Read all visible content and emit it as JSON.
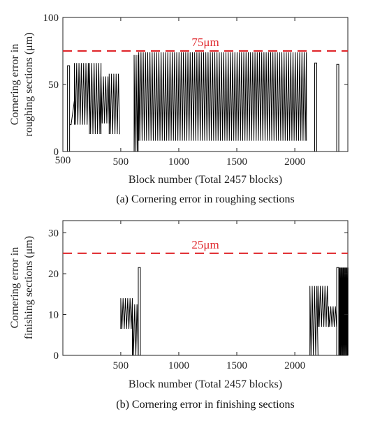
{
  "chart_data": [
    {
      "type": "line",
      "caption": "(a) Cornering error in roughing sections",
      "xlabel": "Block number (Total 2457 blocks)",
      "ylabel": [
        "Cornering error in",
        "roughing sections (μm)"
      ],
      "xlim": [
        1,
        2457
      ],
      "ylim": [
        0,
        100
      ],
      "xticks": [
        "500",
        "1000",
        "1500",
        "2000"
      ],
      "yticks": [
        "0",
        "50",
        "100"
      ],
      "threshold": {
        "value": 75,
        "label": "75μm",
        "color": "#e0292e",
        "style": "dashed"
      },
      "series_color": "#000000",
      "segments": [
        {
          "x": [
            30,
            70
          ],
          "low": 0,
          "high": 64,
          "kind": "spike"
        },
        {
          "x": [
            60,
            100
          ],
          "low": 20,
          "high": 38,
          "kind": "ramp"
        },
        {
          "x": [
            100,
            230
          ],
          "low": 20,
          "high": 66,
          "kind": "oscillation"
        },
        {
          "x": [
            230,
            330
          ],
          "low": 13,
          "high": 66,
          "kind": "oscillation"
        },
        {
          "x": [
            330,
            400
          ],
          "low": 21,
          "high": 56,
          "kind": "oscillation"
        },
        {
          "x": [
            400,
            490
          ],
          "low": 13,
          "high": 58,
          "kind": "oscillation"
        },
        {
          "x": [
            615,
            650
          ],
          "low": 0,
          "high": 72,
          "kind": "oscillation"
        },
        {
          "x": [
            655,
            2100
          ],
          "low": 8,
          "high": 74,
          "kind": "oscillation"
        },
        {
          "x": [
            2170,
            2190
          ],
          "low": 0,
          "high": 66,
          "kind": "spike"
        },
        {
          "x": [
            2365,
            2375
          ],
          "low": 0,
          "high": 65,
          "kind": "spike"
        }
      ]
    },
    {
      "type": "line",
      "caption": "(b) Cornering error in finishing sections",
      "xlabel": "Block number (Total 2457 blocks)",
      "ylabel": [
        "Cornering error in",
        "finishing sections (μm)"
      ],
      "xlim": [
        1,
        2457
      ],
      "ylim": [
        0,
        33
      ],
      "xticks": [
        "500",
        "1000",
        "1500",
        "2000"
      ],
      "yticks": [
        "0",
        "10",
        "20",
        "30"
      ],
      "threshold": {
        "value": 25,
        "label": "25μm",
        "color": "#e0292e",
        "style": "dashed"
      },
      "series_color": "#000000",
      "segments": [
        {
          "x": [
            500,
            600
          ],
          "low": 6.5,
          "high": 14,
          "kind": "oscillation"
        },
        {
          "x": [
            600,
            650
          ],
          "low": 0,
          "high": 12.5,
          "kind": "oscillation"
        },
        {
          "x": [
            655,
            665
          ],
          "low": 0,
          "high": 21.5,
          "kind": "spike"
        },
        {
          "x": [
            2130,
            2200
          ],
          "low": 0,
          "high": 17,
          "kind": "oscillation"
        },
        {
          "x": [
            2200,
            2290
          ],
          "low": 7,
          "high": 17,
          "kind": "oscillation"
        },
        {
          "x": [
            2290,
            2360
          ],
          "low": 7,
          "high": 12,
          "kind": "oscillation"
        },
        {
          "x": [
            2360,
            2380
          ],
          "low": 0,
          "high": 21.5,
          "kind": "spike"
        },
        {
          "x": [
            2380,
            2457
          ],
          "low": 0,
          "high": 21.5,
          "kind": "dense"
        }
      ]
    }
  ]
}
